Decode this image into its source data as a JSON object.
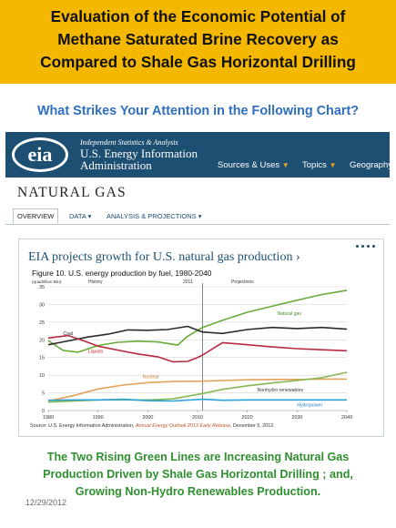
{
  "slide": {
    "title_lines": [
      "Evaluation of the Economic Potential of",
      "Methane Saturated Brine Recovery as",
      "Compared to Shale Gas Horizontal Drilling"
    ],
    "question": "What Strikes Your Attention in the Following Chart?",
    "footer_lines": [
      "The Two Rising Green Lines are Increasing Natural Gas",
      "Production Driven by Shale Gas Horizontal Drilling ; and,",
      "Growing Non-Hydro Renewables Production."
    ],
    "date": "12/29/2012",
    "colors": {
      "banner": "#f5b800",
      "question": "#2e6fc0",
      "footer": "#2f8f2f",
      "eia_bar": "#1d4f72"
    }
  },
  "eia": {
    "logo_text": "eia",
    "tagline": "Independent Statistics & Analysis",
    "org_line1": "U.S. Energy Information",
    "org_line2": "Administration",
    "nav": [
      "Sources & Uses",
      "Topics",
      "Geography"
    ],
    "page_title": "NATURAL GAS",
    "tabs": [
      "OVERVIEW",
      "DATA",
      "ANALYSIS & PROJECTIONS"
    ],
    "panel_title": "EIA projects growth for U.S. natural gas production ›"
  },
  "chart_data": {
    "type": "line",
    "title": "Figure 10. U.S. energy production by fuel, 1980-2040",
    "unit_label": "(quadrillion Btu)",
    "period_labels": [
      "History",
      "2011",
      "Projections"
    ],
    "source_prefix": "Source: U.S. Energy Information Administration, ",
    "source_link": "Annual Energy Outlook 2013 Early Release",
    "source_suffix": ", December 5, 2012.",
    "x_ticks": [
      1980,
      1990,
      2000,
      2010,
      2020,
      2030,
      2040
    ],
    "y_ticks": [
      0,
      5,
      10,
      15,
      20,
      25,
      30,
      35
    ],
    "xlim": [
      1980,
      2040
    ],
    "ylim": [
      0,
      35
    ],
    "divider_x": 2011,
    "grid": true,
    "series": [
      {
        "name": "Natural gas",
        "color": "#6aab3c",
        "x": [
          1980,
          1983,
          1986,
          1990,
          1994,
          1998,
          2002,
          2006,
          2008,
          2011,
          2015,
          2020,
          2025,
          2030,
          2035,
          2040
        ],
        "y": [
          19.8,
          17.0,
          16.5,
          18.4,
          19.3,
          19.6,
          19.4,
          18.5,
          21.0,
          23.5,
          25.5,
          27.8,
          29.5,
          31.2,
          32.8,
          34.0
        ]
      },
      {
        "name": "Coal",
        "color": "#2b2b2b",
        "x": [
          1980,
          1984,
          1988,
          1992,
          1996,
          2000,
          2004,
          2008,
          2011,
          2015,
          2020,
          2025,
          2030,
          2035,
          2040
        ],
        "y": [
          18.6,
          19.7,
          20.8,
          21.6,
          22.8,
          22.7,
          22.9,
          23.8,
          22.2,
          21.8,
          22.9,
          23.5,
          23.2,
          23.5,
          23.0
        ]
      },
      {
        "name": "Liquids",
        "color": "#b82840",
        "x": [
          1980,
          1984,
          1987,
          1990,
          1994,
          1998,
          2002,
          2005,
          2008,
          2010,
          2011,
          2015,
          2020,
          2025,
          2030,
          2035,
          2040
        ],
        "y": [
          20.5,
          21.2,
          19.8,
          18.2,
          17.1,
          16.0,
          15.2,
          13.8,
          13.9,
          15.0,
          15.7,
          19.2,
          18.6,
          18.0,
          17.5,
          17.2,
          16.9
        ]
      },
      {
        "name": "Nuclear",
        "color": "#e3a25c",
        "x": [
          1980,
          1985,
          1990,
          1995,
          2000,
          2005,
          2011,
          2015,
          2020,
          2025,
          2030,
          2035,
          2040
        ],
        "y": [
          2.7,
          4.2,
          6.1,
          7.2,
          7.9,
          8.2,
          8.3,
          8.5,
          8.7,
          8.8,
          8.8,
          8.9,
          8.9
        ]
      },
      {
        "name": "Nonhydro renewables",
        "color": "#86b855",
        "x": [
          1980,
          1990,
          2000,
          2005,
          2011,
          2015,
          2020,
          2025,
          2030,
          2035,
          2040
        ],
        "y": [
          2.4,
          3.0,
          3.0,
          3.3,
          4.8,
          6.0,
          7.0,
          7.8,
          8.5,
          9.3,
          10.8
        ]
      },
      {
        "name": "Hydropower",
        "color": "#2aa2d8",
        "x": [
          1980,
          1985,
          1990,
          1995,
          2000,
          2005,
          2011,
          2015,
          2020,
          2025,
          2030,
          2035,
          2040
        ],
        "y": [
          2.9,
          3.0,
          3.0,
          3.2,
          2.8,
          2.7,
          3.2,
          2.9,
          3.0,
          3.0,
          3.0,
          3.0,
          3.0
        ]
      }
    ],
    "series_labels": [
      "Natural gas",
      "Coal",
      "Liquids",
      "Nuclear",
      "Nonhydro renewables",
      "Hydropower"
    ]
  }
}
